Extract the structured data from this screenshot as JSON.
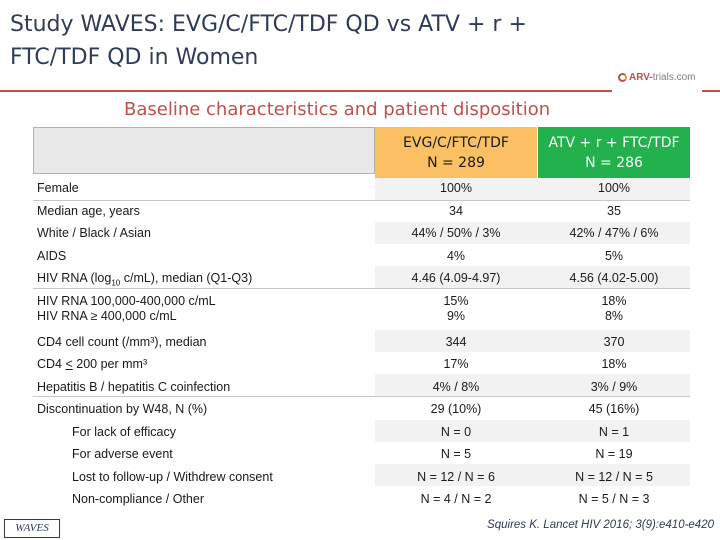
{
  "title": "Study WAVES: EVG/C/FTC/TDF QD vs ATV + r + FTC/TDF QD in Women",
  "logo": {
    "part1": "ARV-",
    "part2": "trials.com"
  },
  "subtitle": "Baseline characteristics and patient disposition",
  "columns": [
    {
      "name": "EVG/C/FTC/TDF",
      "n": "N = 289",
      "color": "#fbc064"
    },
    {
      "name": "ATV + r + FTC/TDF",
      "n": "N = 286",
      "color": "#22b14c"
    }
  ],
  "rows": [
    {
      "label": "Female",
      "v1": "100%",
      "v2": "100%"
    },
    {
      "label": "Median age, years",
      "v1": "34",
      "v2": "35"
    },
    {
      "label": "White / Black / Asian",
      "v1": "44% / 50% / 3%",
      "v2": "42% / 47% / 6%"
    },
    {
      "label": "AIDS",
      "v1": "4%",
      "v2": "5%"
    },
    {
      "label_pre": "HIV RNA (log",
      "label_sub": "10",
      "label_post": " c/mL), median (Q1-Q3)",
      "v1": "4.46 (4.09-4.97)",
      "v2": "4.56 (4.02-5.00)"
    },
    {
      "label_line1": "HIV RNA 100,000-400,000 c/mL",
      "label_line2": "HIV RNA ≥ 400,000 c/mL",
      "v1a": "15%",
      "v1b": "9%",
      "v2a": "18%",
      "v2b": "8%"
    },
    {
      "label": "CD4 cell count (/mm³), median",
      "v1": "344",
      "v2": "370"
    },
    {
      "label_pre": "CD4 ",
      "label_u": "<",
      "label_post": " 200 per mm³",
      "v1": "17%",
      "v2": "18%"
    },
    {
      "label": "Hepatitis B / hepatitis C coinfection",
      "v1": "4% / 8%",
      "v2": "3% / 9%"
    },
    {
      "label": "Discontinuation by W48, N (%)",
      "v1": "29 (10%)",
      "v2": "45 (16%)"
    },
    {
      "label": "For lack of efficacy",
      "v1": "N = 0",
      "v2": "N = 1"
    },
    {
      "label": "For adverse event",
      "v1": "N = 5",
      "v2": "N = 19"
    },
    {
      "label": "Lost to follow-up / Withdrew consent",
      "v1": "N = 12 / N = 6",
      "v2": "N = 12 / N = 5"
    },
    {
      "label": "Non-compliance / Other",
      "v1": "N = 4 / N = 2",
      "v2": "N = 5 / N = 3"
    }
  ],
  "footer": {
    "study": "WAVES",
    "reference": "Squires K. Lancet HIV 2016; 3(9):e410-e420"
  }
}
